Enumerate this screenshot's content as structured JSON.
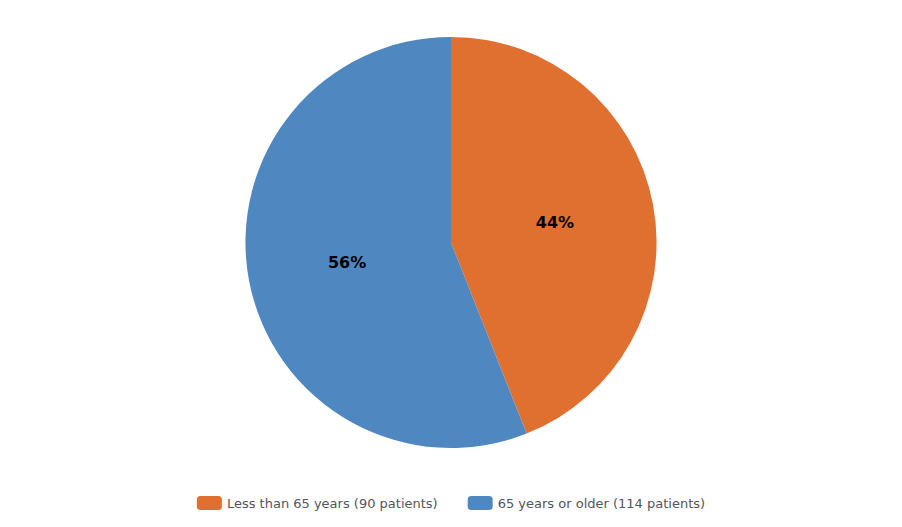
{
  "chart_data": {
    "type": "pie",
    "categories": [
      "Less than 65 years (90 patients)",
      "65 years or older (114 patients)"
    ],
    "values": [
      44,
      56
    ],
    "value_labels": [
      "44%",
      "56%"
    ],
    "colors": [
      "#E07030",
      "#4F87C0"
    ],
    "data_labels": true,
    "legend": "bottom"
  }
}
